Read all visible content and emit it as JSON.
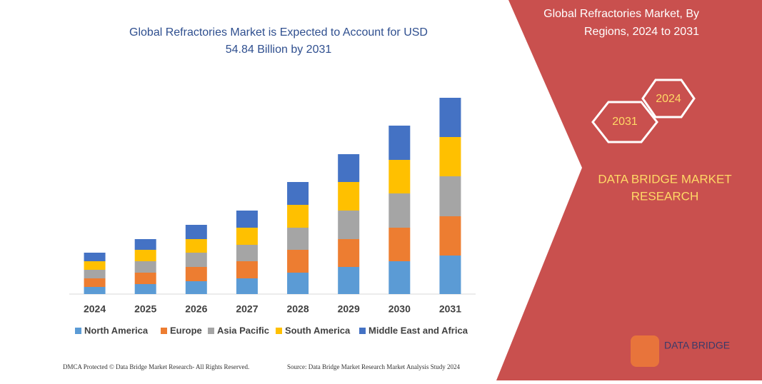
{
  "chart_data": {
    "type": "stacked_bar",
    "title": [
      "Global Refractories Market is Expected to Account for USD",
      "54.84 Billion by 2031"
    ],
    "categories": [
      "2024",
      "2025",
      "2026",
      "2027",
      "2028",
      "2029",
      "2030",
      "2031"
    ],
    "series": [
      {
        "name": "North America",
        "color": "#5b9bd5",
        "values": [
          10,
          14,
          18,
          22,
          30,
          38,
          46,
          54
        ]
      },
      {
        "name": "Europe",
        "color": "#ed7d31",
        "values": [
          12,
          16,
          20,
          24,
          32,
          39,
          47,
          55
        ]
      },
      {
        "name": "Asia Pacific",
        "color": "#a5a5a5",
        "values": [
          12,
          16,
          20,
          23,
          31,
          40,
          48,
          56
        ]
      },
      {
        "name": "South America",
        "color": "#ffc000",
        "values": [
          12,
          16,
          19,
          24,
          32,
          40,
          47,
          55
        ]
      },
      {
        "name": "Middle East and Africa",
        "color": "#4472c4",
        "values": [
          12,
          15,
          20,
          24,
          32,
          39,
          48,
          55
        ]
      }
    ],
    "ylim": [
      0,
      275
    ],
    "legend": "bottom"
  },
  "panel": {
    "title": [
      "Global Refractories Market, By",
      "Regions, 2024 to 2031"
    ],
    "hexagons": [
      "2024",
      "2031"
    ],
    "brand": [
      "DATA BRIDGE MARKET",
      "RESEARCH"
    ],
    "logo": "DATA BRIDGE"
  },
  "footer": {
    "left": "DMCA Protected © Data Bridge Market Research- All Rights Reserved.",
    "right": "Source: Data Bridge Market Research Market Analysis Study 2024"
  }
}
